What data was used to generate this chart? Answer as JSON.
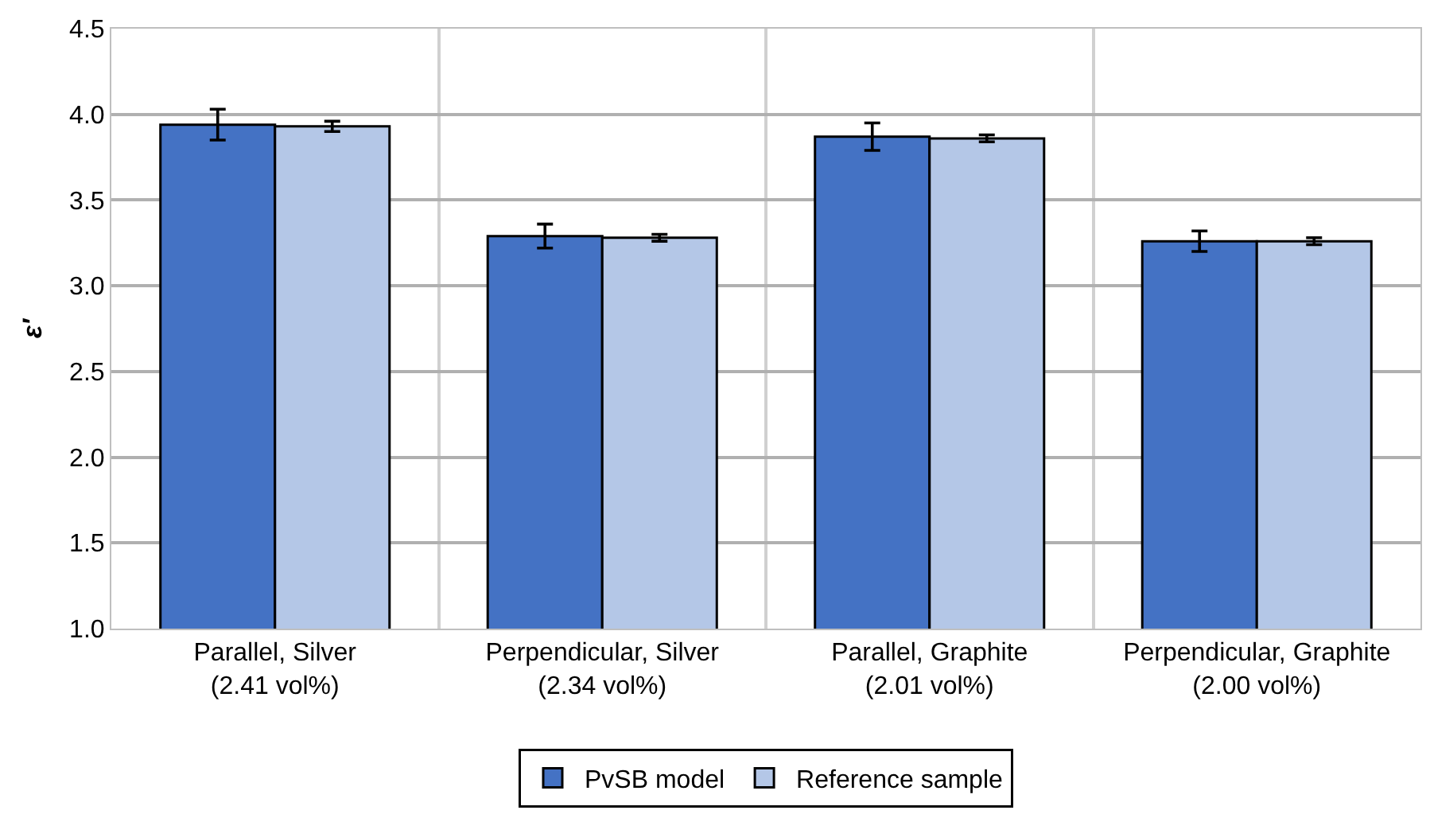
{
  "chart_data": {
    "type": "bar",
    "ylabel": "ε′",
    "categories": [
      "Parallel, Silver\n(2.41 vol%)",
      "Perpendicular, Silver\n(2.34 vol%)",
      "Parallel, Graphite\n(2.01 vol%)",
      "Perpendicular, Graphite\n(2.00 vol%)"
    ],
    "series": [
      {
        "name": "PvSB model",
        "color": "#4472c4",
        "values": [
          3.94,
          3.29,
          3.87,
          3.26
        ],
        "errors": [
          0.09,
          0.07,
          0.08,
          0.06
        ]
      },
      {
        "name": "Reference sample",
        "color": "#b4c7e7",
        "values": [
          3.93,
          3.28,
          3.86,
          3.26
        ],
        "errors": [
          0.03,
          0.02,
          0.02,
          0.02
        ]
      }
    ],
    "ylim": [
      1,
      4.5
    ],
    "yticks": [
      {
        "value": 1,
        "label": "1.0"
      },
      {
        "value": 1.5,
        "label": "1.5"
      },
      {
        "value": 2,
        "label": "2.0"
      },
      {
        "value": 2.5,
        "label": "2.5"
      },
      {
        "value": 3,
        "label": "3.0"
      },
      {
        "value": 3.5,
        "label": "3.5"
      },
      {
        "value": 4,
        "label": "4.0"
      },
      {
        "value": 4.5,
        "label": "4.5"
      }
    ],
    "grid": true,
    "legend": "bottom"
  }
}
